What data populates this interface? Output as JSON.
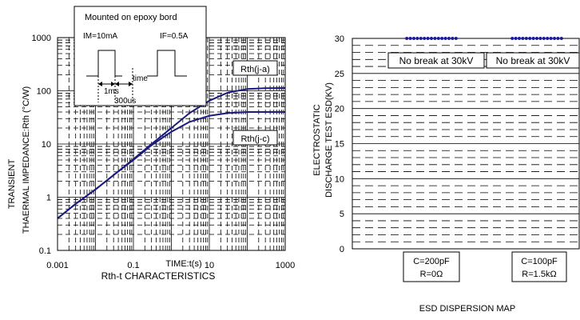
{
  "chart_data": [
    {
      "type": "line",
      "title": "",
      "caption": "Rth-t CHARACTERISTICS",
      "xlabel": "TIME:t(s)",
      "ylabel_line1": "TRANSIENT",
      "ylabel_line2": "THAERMAL IMPEDANCE:Rth (°C/W)",
      "x_scale": "log",
      "y_scale": "log",
      "xlim": [
        0.001,
        1000
      ],
      "ylim": [
        0.1,
        1000
      ],
      "x_ticks": [
        "0.001",
        "0.1",
        "10",
        "1000"
      ],
      "y_ticks": [
        "1000",
        "100",
        "10",
        "1",
        "0.1"
      ],
      "grid": true,
      "series": [
        {
          "name": "Rth(j-a)",
          "x": [
            0.001,
            0.003,
            0.01,
            0.03,
            0.1,
            0.3,
            1,
            3,
            10,
            30,
            100,
            300,
            1000
          ],
          "y": [
            0.4,
            0.75,
            1.4,
            2.6,
            5.2,
            10,
            20,
            38,
            65,
            92,
            108,
            112,
            113
          ]
        },
        {
          "name": "Rth(j-c)",
          "x": [
            0.001,
            0.003,
            0.01,
            0.03,
            0.1,
            0.3,
            1,
            3,
            10,
            30,
            100,
            300,
            1000
          ],
          "y": [
            0.4,
            0.75,
            1.4,
            2.6,
            5.0,
            9.5,
            17,
            26,
            34,
            38,
            40,
            40,
            40
          ]
        }
      ],
      "inset": {
        "title": "Mounted on epoxy bord",
        "label_left": "IM=10mA",
        "label_right": "IF=0.5A",
        "label_pulse": "1ms",
        "label_time": "time",
        "label_width": "300us"
      }
    },
    {
      "type": "scatter",
      "title": "",
      "caption": "ESD DISPERSION MAP",
      "ylabel_line1": "ELECTROSTATIC",
      "ylabel_line2": "DISCHARGE TEST ESD(KV)",
      "ylim": [
        0,
        30
      ],
      "y_ticks": [
        "30",
        "25",
        "20",
        "15",
        "10",
        "5",
        "0"
      ],
      "grid": true,
      "categories": [
        {
          "line1": "C=200pF",
          "line2": "R=0Ω",
          "note": "No break at 30kV",
          "value": 30,
          "points": 15
        },
        {
          "line1": "C=100pF",
          "line2": "R=1.5kΩ",
          "note": "No break at 30kV",
          "value": 30,
          "points": 15
        }
      ],
      "marker_color": "#1a1aa0"
    }
  ],
  "colors": {
    "curve": "#1a1a80",
    "grid": "#000000",
    "marker": "#1a1aa0"
  }
}
